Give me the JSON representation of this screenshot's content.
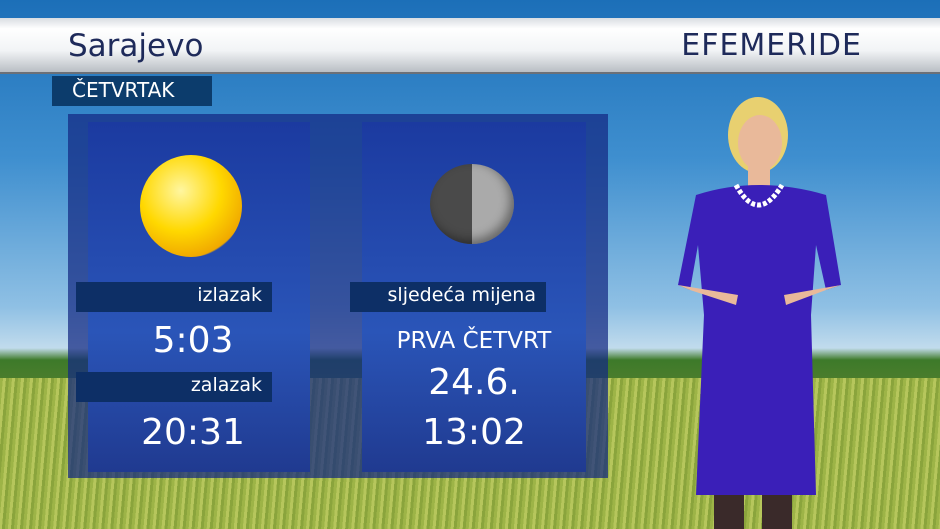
{
  "header": {
    "city": "Sarajevo",
    "section": "EFEMERIDE",
    "day": "ČETVRTAK"
  },
  "sun": {
    "icon": "sun-icon",
    "sunrise_label": "izlazak",
    "sunrise": "5:03",
    "sunset_label": "zalazak",
    "sunset": "20:31"
  },
  "moon": {
    "icon": "first-quarter-moon-icon",
    "label": "sljedeća mijena",
    "phase": "PRVA ČETVRT",
    "date": "24.6.",
    "time": "13:02"
  }
}
